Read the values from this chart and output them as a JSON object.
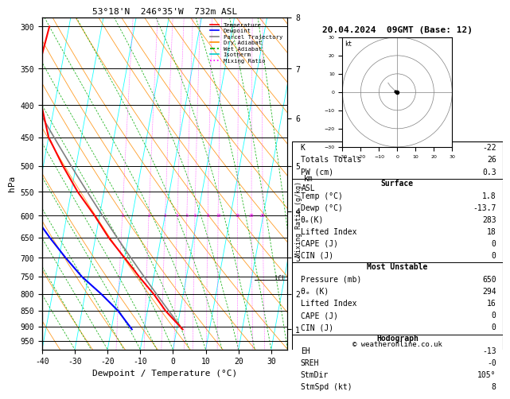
{
  "title_left": "53°18'N  246°35'W  732m ASL",
  "title_right": "20.04.2024  09GMT (Base: 12)",
  "xlabel": "Dewpoint / Temperature (°C)",
  "ylabel_left": "hPa",
  "background_color": "#ffffff",
  "legend_entries": [
    {
      "label": "Temperature",
      "color": "#ff0000"
    },
    {
      "label": "Dewpoint",
      "color": "#0000ff"
    },
    {
      "label": "Parcel Trajectory",
      "color": "#808080"
    },
    {
      "label": "Dry Adiabat",
      "color": "#ff8c00"
    },
    {
      "label": "Wet Adiabat",
      "color": "#00aa00"
    },
    {
      "label": "Isotherm",
      "color": "#00cccc"
    },
    {
      "label": "Mixing Ratio",
      "color": "#ff00ff"
    }
  ],
  "km_ticks": [
    1,
    2,
    3,
    4,
    5,
    6,
    7,
    8
  ],
  "km_pressures": [
    910,
    800,
    700,
    590,
    500,
    420,
    350,
    290
  ],
  "mixing_ratio_vals": [
    1,
    2,
    3,
    4,
    5,
    6,
    8,
    10,
    15,
    20,
    25
  ],
  "lcl_pressure": 760,
  "p_yticks": [
    300,
    350,
    400,
    450,
    500,
    550,
    600,
    650,
    700,
    750,
    800,
    850,
    900,
    950
  ],
  "p_min": 290,
  "p_max": 980,
  "stats_K": -22,
  "stats_TT": 26,
  "stats_PW": 0.3,
  "surf_temp": 1.8,
  "surf_dewp": -13.7,
  "surf_theta_e": 283,
  "surf_li": 18,
  "surf_cape": 0,
  "surf_cin": 0,
  "mu_pressure": 650,
  "mu_theta_e": 294,
  "mu_li": 16,
  "mu_cape": 0,
  "mu_cin": 0,
  "hodo_eh": -13,
  "hodo_sreh": 0,
  "hodo_stmdir": 105,
  "hodo_stmspd": 8,
  "copyright": "© weatheronline.co.uk",
  "font_family": "monospace"
}
